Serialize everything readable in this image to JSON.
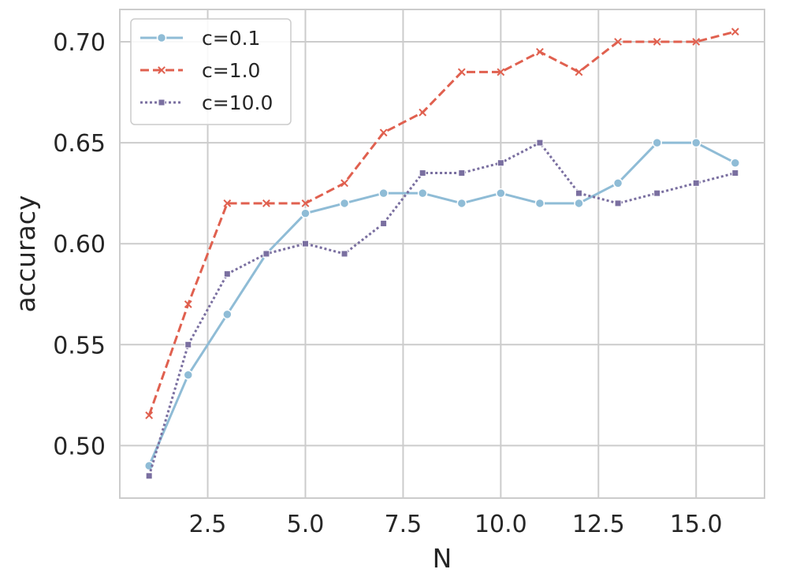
{
  "chart_data": {
    "type": "line",
    "xlabel": "N",
    "ylabel": "accuracy",
    "xlim": [
      0.25,
      16.75
    ],
    "ylim": [
      0.474,
      0.716
    ],
    "xticks": [
      2.5,
      5.0,
      7.5,
      10.0,
      12.5,
      15.0
    ],
    "xtick_labels": [
      "2.5",
      "5.0",
      "7.5",
      "10.0",
      "12.5",
      "15.0"
    ],
    "yticks": [
      0.5,
      0.55,
      0.6,
      0.65,
      0.7
    ],
    "ytick_labels": [
      "0.50",
      "0.55",
      "0.60",
      "0.65",
      "0.70"
    ],
    "grid": true,
    "legend_position": "top-left",
    "x": [
      1,
      2,
      3,
      4,
      5,
      6,
      7,
      8,
      9,
      10,
      11,
      12,
      13,
      14,
      15,
      16
    ],
    "series": [
      {
        "name": "c=0.1",
        "color": "#8fbcd6",
        "line_style": "solid",
        "marker": "circle",
        "values": [
          0.49,
          0.535,
          0.565,
          0.595,
          0.615,
          0.62,
          0.625,
          0.625,
          0.62,
          0.625,
          0.62,
          0.62,
          0.63,
          0.65,
          0.65,
          0.64
        ]
      },
      {
        "name": "c=1.0",
        "color": "#e0604f",
        "line_style": "dashed",
        "marker": "x",
        "values": [
          0.515,
          0.57,
          0.62,
          0.62,
          0.62,
          0.63,
          0.655,
          0.665,
          0.685,
          0.685,
          0.695,
          0.685,
          0.7,
          0.7,
          0.7,
          0.705
        ]
      },
      {
        "name": "c=10.0",
        "color": "#7a6fa0",
        "line_style": "dotted",
        "marker": "square",
        "values": [
          0.485,
          0.55,
          0.585,
          0.595,
          0.6,
          0.595,
          0.61,
          0.635,
          0.635,
          0.64,
          0.65,
          0.625,
          0.62,
          0.625,
          0.63,
          0.635
        ]
      }
    ]
  }
}
